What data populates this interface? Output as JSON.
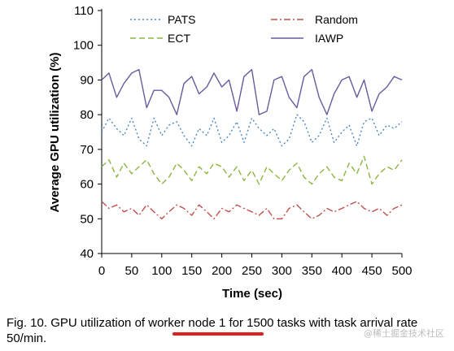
{
  "chart_data": {
    "type": "line",
    "title": "",
    "xlabel": "Time (sec)",
    "ylabel": "Average GPU utilization (%)",
    "xlim": [
      0,
      500
    ],
    "ylim": [
      40,
      110
    ],
    "x_ticks": [
      0,
      50,
      100,
      150,
      200,
      250,
      300,
      350,
      400,
      450,
      500
    ],
    "y_ticks": [
      40,
      50,
      60,
      70,
      80,
      90,
      100,
      110
    ],
    "grid": false,
    "legend_position": "top",
    "x": [
      0,
      12,
      25,
      37,
      50,
      62,
      75,
      87,
      100,
      112,
      125,
      137,
      150,
      162,
      175,
      187,
      200,
      212,
      225,
      237,
      250,
      262,
      275,
      287,
      300,
      312,
      325,
      337,
      350,
      362,
      375,
      387,
      400,
      412,
      425,
      437,
      450,
      462,
      475,
      487,
      500
    ],
    "series": [
      {
        "name": "PATS",
        "color": "#4a86c6",
        "dash": "2,3",
        "values": [
          75,
          79,
          76,
          74,
          79,
          73,
          71,
          79,
          74,
          77,
          78,
          74,
          71,
          76,
          74,
          79,
          72,
          74,
          78,
          72,
          79,
          76,
          74,
          76,
          71,
          73,
          80,
          78,
          72,
          74,
          79,
          72,
          75,
          77,
          71,
          78,
          79,
          74,
          77,
          76,
          78
        ]
      },
      {
        "name": "Random",
        "color": "#c0504d",
        "dash": "8,3,2,3",
        "values": [
          55,
          53,
          54,
          52,
          53,
          51,
          54,
          52,
          50,
          52,
          54,
          53,
          51,
          54,
          52,
          50,
          53,
          52,
          54,
          53,
          52,
          51,
          53,
          50,
          50,
          53,
          54,
          52,
          50,
          51,
          53,
          52,
          53,
          54,
          55,
          53,
          52,
          53,
          51,
          53,
          54
        ]
      },
      {
        "name": "ECT",
        "color": "#8db53f",
        "dash": "7,4",
        "values": [
          65,
          67,
          62,
          66,
          63,
          65,
          67,
          63,
          60,
          62,
          66,
          64,
          61,
          65,
          63,
          66,
          65,
          62,
          65,
          61,
          64,
          60,
          65,
          63,
          61,
          64,
          66,
          62,
          60,
          63,
          65,
          62,
          61,
          66,
          63,
          68,
          60,
          63,
          65,
          64,
          67
        ]
      },
      {
        "name": "IAWP",
        "color": "#6a5a9e",
        "dash": "",
        "values": [
          90,
          92,
          85,
          89,
          92,
          93,
          82,
          87,
          87,
          85,
          80,
          89,
          91,
          86,
          88,
          92,
          88,
          90,
          81,
          91,
          93,
          80,
          81,
          90,
          91,
          85,
          82,
          91,
          93,
          85,
          80,
          86,
          90,
          91,
          85,
          90,
          81,
          86,
          88,
          91,
          90
        ]
      }
    ]
  },
  "caption": "Fig. 10. GPU utilization of worker node 1 for 1500 tasks with task arrival rate 50/min.",
  "watermark": "@稀土掘金技术社区"
}
